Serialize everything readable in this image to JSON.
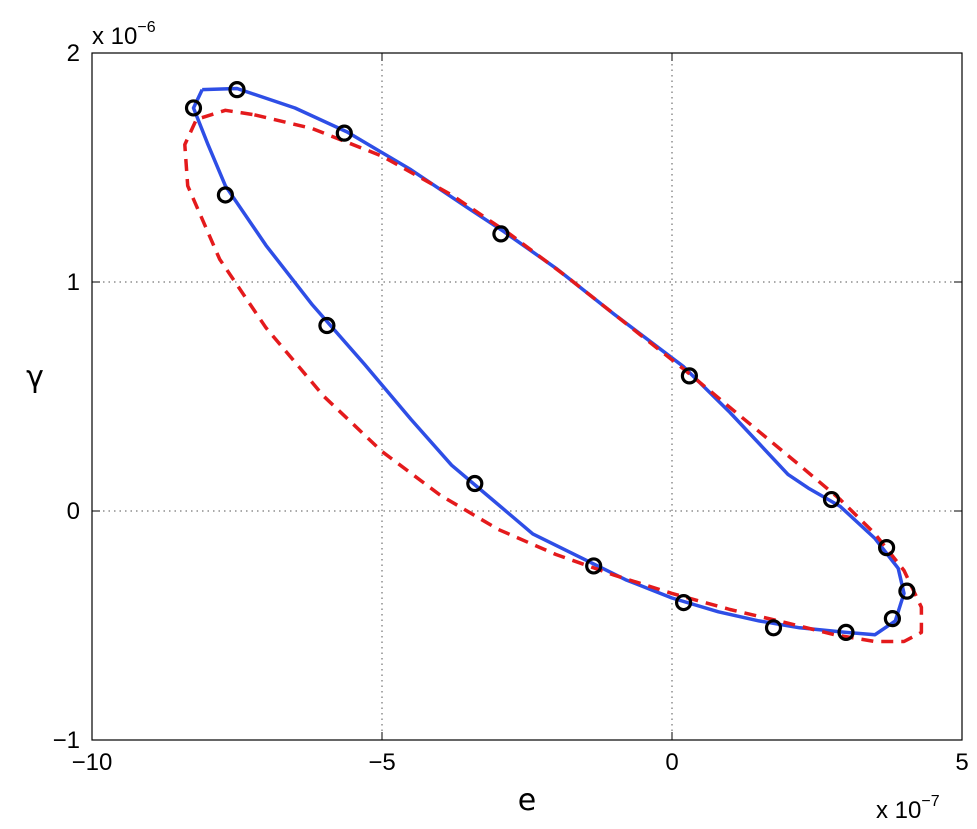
{
  "chart_data": {
    "type": "scatter",
    "title": "",
    "xlabel": "e",
    "ylabel": "γ",
    "x_multiplier": {
      "base": "x 10",
      "exponent": "−7"
    },
    "y_multiplier": {
      "base": "x 10",
      "exponent": "−6"
    },
    "xlim": [
      -10,
      5
    ],
    "ylim": [
      -1,
      2
    ],
    "xticks": [
      -10,
      -5,
      0,
      5
    ],
    "yticks": [
      -1,
      0,
      1,
      2
    ],
    "xtick_labels": [
      "−10",
      "−5",
      "0",
      "5"
    ],
    "ytick_labels": [
      "−1",
      "0",
      "1",
      "2"
    ],
    "grid": true,
    "series": [
      {
        "style": "solid",
        "color": "#2e4ee6",
        "x": [
          -8.1,
          -7.5,
          -6.5,
          -5.6,
          -4.5,
          -3.5,
          -2.9,
          -2.0,
          -1.0,
          0.2,
          1.0,
          2.0,
          2.35,
          2.9,
          3.5,
          3.9,
          4.0,
          3.85,
          3.5,
          3.0,
          2.2,
          1.5,
          0.8,
          0.0,
          -0.8,
          -1.6,
          -2.4,
          -3.1,
          -3.8,
          -4.5,
          -5.3,
          -6.2,
          -7.0,
          -7.7,
          -8.0,
          -8.25,
          -8.1
        ],
        "y": [
          1.84,
          1.845,
          1.76,
          1.655,
          1.49,
          1.32,
          1.22,
          1.06,
          0.86,
          0.63,
          0.43,
          0.16,
          0.1,
          0.02,
          -0.12,
          -0.25,
          -0.36,
          -0.48,
          -0.54,
          -0.53,
          -0.51,
          -0.48,
          -0.44,
          -0.38,
          -0.3,
          -0.2,
          -0.1,
          0.05,
          0.2,
          0.4,
          0.64,
          0.9,
          1.16,
          1.42,
          1.6,
          1.76,
          1.84
        ]
      },
      {
        "style": "dashed",
        "color": "#e41a1c",
        "x": [
          -7.2,
          -6.2,
          -5.0,
          -3.8,
          -2.8,
          -1.8,
          -0.8,
          0.2,
          1.2,
          2.2,
          2.9,
          3.5,
          4.0,
          4.3,
          4.3,
          4.0,
          3.5,
          2.8,
          2.0,
          1.0,
          0.0,
          -1.0,
          -2.0,
          -3.0,
          -4.0,
          -5.0,
          -6.0,
          -7.0,
          -7.8,
          -8.35,
          -8.4,
          -8.2,
          -7.7,
          -7.2
        ],
        "y": [
          1.73,
          1.67,
          1.55,
          1.38,
          1.21,
          1.02,
          0.82,
          0.62,
          0.41,
          0.2,
          0.05,
          -0.1,
          -0.26,
          -0.42,
          -0.53,
          -0.57,
          -0.57,
          -0.54,
          -0.49,
          -0.43,
          -0.36,
          -0.28,
          -0.19,
          -0.08,
          0.07,
          0.26,
          0.5,
          0.8,
          1.1,
          1.42,
          1.6,
          1.71,
          1.75,
          1.73
        ]
      },
      {
        "style": "markers",
        "color": "#000000",
        "x": [
          -7.5,
          -8.25,
          -5.65,
          -7.7,
          -2.95,
          -5.95,
          0.3,
          -3.4,
          2.75,
          3.7,
          4.05,
          3.8,
          3.0,
          1.75,
          0.2,
          -1.35
        ],
        "y": [
          1.84,
          1.76,
          1.65,
          1.38,
          1.21,
          0.81,
          0.59,
          0.12,
          0.05,
          -0.16,
          -0.35,
          -0.47,
          -0.53,
          -0.51,
          -0.4,
          -0.24
        ]
      }
    ]
  }
}
